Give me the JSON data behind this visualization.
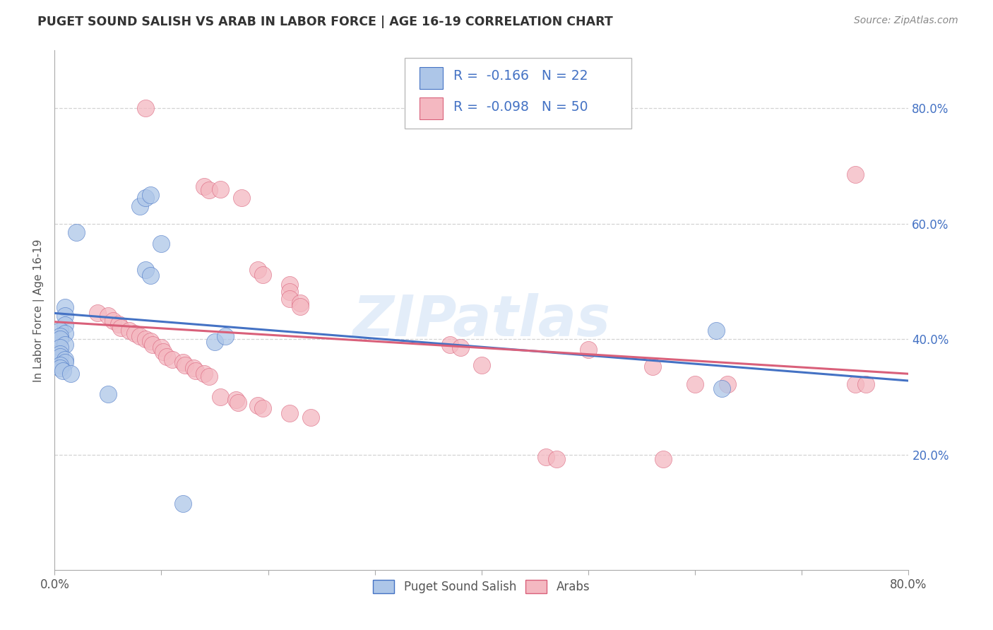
{
  "title": "PUGET SOUND SALISH VS ARAB IN LABOR FORCE | AGE 16-19 CORRELATION CHART",
  "source": "Source: ZipAtlas.com",
  "ylabel": "In Labor Force | Age 16-19",
  "xlim": [
    0.0,
    0.8
  ],
  "ylim": [
    0.0,
    0.9
  ],
  "xtick_positions": [
    0.0,
    0.1,
    0.2,
    0.3,
    0.4,
    0.5,
    0.6,
    0.7,
    0.8
  ],
  "xtick_labels": [
    "0.0%",
    "",
    "",
    "",
    "",
    "",
    "",
    "",
    "80.0%"
  ],
  "ytick_positions": [
    0.2,
    0.4,
    0.6,
    0.8
  ],
  "ytick_labels": [
    "20.0%",
    "40.0%",
    "60.0%",
    "80.0%"
  ],
  "legend1_color": "#adc6e8",
  "legend2_color": "#f4b8c1",
  "line1_color": "#4472c4",
  "line2_color": "#d9607a",
  "watermark": "ZIPatlas",
  "blue_points": [
    [
      0.02,
      0.585
    ],
    [
      0.01,
      0.455
    ],
    [
      0.01,
      0.44
    ],
    [
      0.01,
      0.425
    ],
    [
      0.005,
      0.415
    ],
    [
      0.01,
      0.41
    ],
    [
      0.005,
      0.405
    ],
    [
      0.005,
      0.4
    ],
    [
      0.01,
      0.39
    ],
    [
      0.005,
      0.385
    ],
    [
      0.005,
      0.375
    ],
    [
      0.005,
      0.37
    ],
    [
      0.01,
      0.365
    ],
    [
      0.01,
      0.36
    ],
    [
      0.005,
      0.355
    ],
    [
      0.005,
      0.35
    ],
    [
      0.008,
      0.345
    ],
    [
      0.015,
      0.34
    ],
    [
      0.08,
      0.63
    ],
    [
      0.085,
      0.645
    ],
    [
      0.09,
      0.65
    ],
    [
      0.1,
      0.565
    ],
    [
      0.085,
      0.52
    ],
    [
      0.09,
      0.51
    ],
    [
      0.05,
      0.305
    ],
    [
      0.12,
      0.115
    ],
    [
      0.62,
      0.415
    ],
    [
      0.625,
      0.315
    ],
    [
      0.15,
      0.395
    ],
    [
      0.16,
      0.405
    ]
  ],
  "pink_points": [
    [
      0.085,
      0.8
    ],
    [
      0.75,
      0.685
    ],
    [
      0.14,
      0.665
    ],
    [
      0.145,
      0.658
    ],
    [
      0.155,
      0.66
    ],
    [
      0.175,
      0.645
    ],
    [
      0.19,
      0.52
    ],
    [
      0.195,
      0.512
    ],
    [
      0.22,
      0.495
    ],
    [
      0.22,
      0.482
    ],
    [
      0.22,
      0.47
    ],
    [
      0.23,
      0.462
    ],
    [
      0.23,
      0.456
    ],
    [
      0.04,
      0.445
    ],
    [
      0.05,
      0.44
    ],
    [
      0.055,
      0.432
    ],
    [
      0.06,
      0.426
    ],
    [
      0.062,
      0.42
    ],
    [
      0.07,
      0.415
    ],
    [
      0.075,
      0.41
    ],
    [
      0.08,
      0.405
    ],
    [
      0.085,
      0.4
    ],
    [
      0.09,
      0.396
    ],
    [
      0.092,
      0.39
    ],
    [
      0.1,
      0.385
    ],
    [
      0.102,
      0.378
    ],
    [
      0.105,
      0.37
    ],
    [
      0.11,
      0.365
    ],
    [
      0.12,
      0.36
    ],
    [
      0.122,
      0.355
    ],
    [
      0.13,
      0.35
    ],
    [
      0.132,
      0.345
    ],
    [
      0.14,
      0.34
    ],
    [
      0.145,
      0.335
    ],
    [
      0.155,
      0.3
    ],
    [
      0.17,
      0.295
    ],
    [
      0.172,
      0.29
    ],
    [
      0.19,
      0.285
    ],
    [
      0.195,
      0.28
    ],
    [
      0.22,
      0.272
    ],
    [
      0.24,
      0.265
    ],
    [
      0.37,
      0.39
    ],
    [
      0.38,
      0.385
    ],
    [
      0.4,
      0.355
    ],
    [
      0.46,
      0.196
    ],
    [
      0.47,
      0.192
    ],
    [
      0.5,
      0.382
    ],
    [
      0.56,
      0.352
    ],
    [
      0.57,
      0.192
    ],
    [
      0.6,
      0.322
    ],
    [
      0.63,
      0.322
    ],
    [
      0.75,
      0.322
    ],
    [
      0.76,
      0.322
    ]
  ],
  "blue_line": {
    "x0": 0.0,
    "y0": 0.445,
    "x1": 0.8,
    "y1": 0.328
  },
  "pink_line": {
    "x0": 0.0,
    "y0": 0.43,
    "x1": 0.8,
    "y1": 0.34
  },
  "background_color": "#ffffff",
  "grid_color": "#c8c8c8",
  "title_color": "#333333",
  "axis_color": "#555555",
  "tick_color": "#4472c4"
}
